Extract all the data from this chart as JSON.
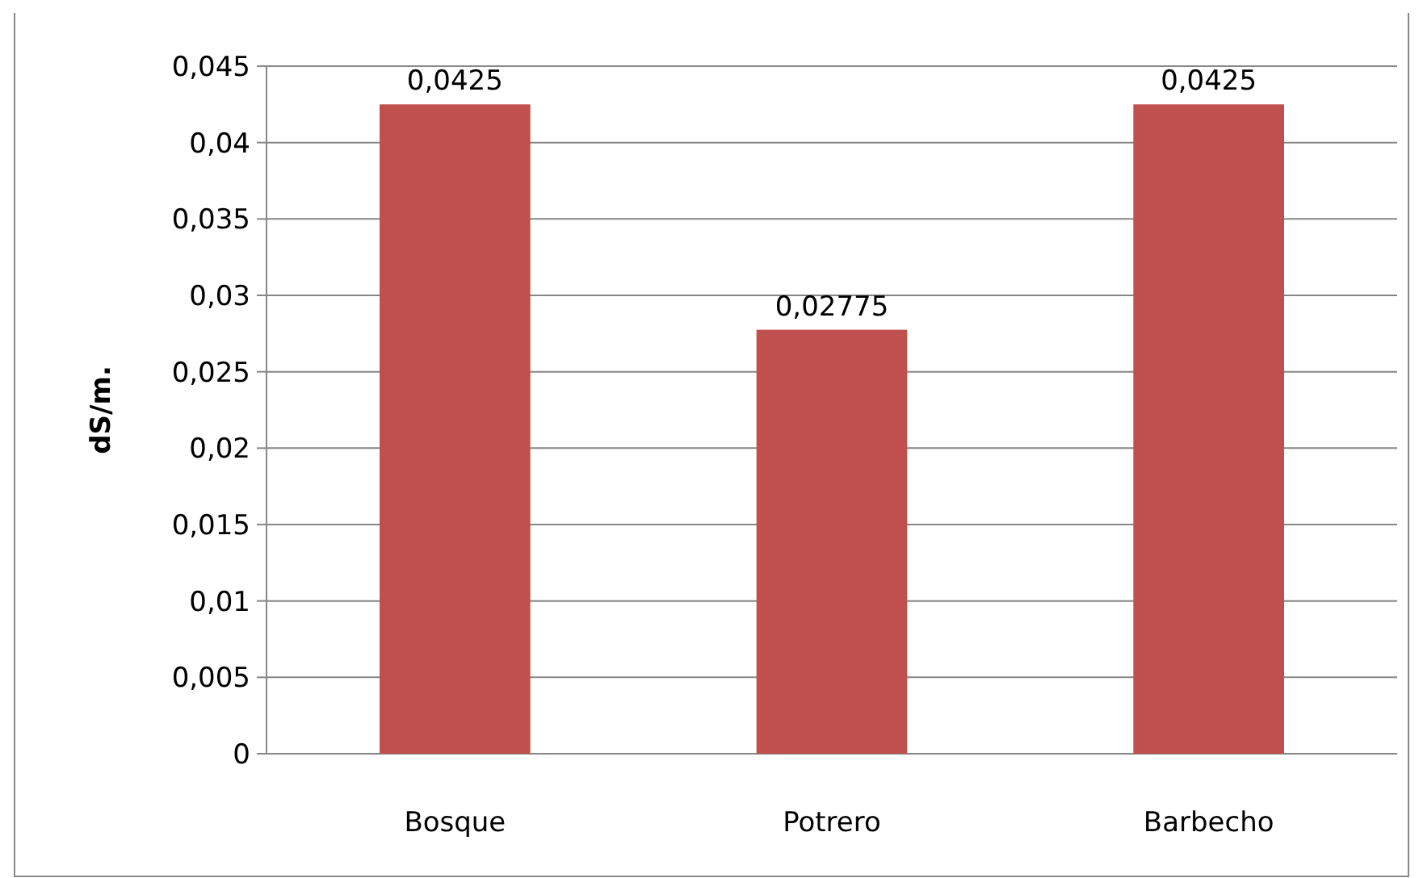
{
  "chart_data": {
    "type": "bar",
    "ylabel": "dS/m.",
    "categories": [
      "Bosque",
      "Potrero",
      "Barbecho"
    ],
    "values": [
      0.0425,
      0.02775,
      0.0425
    ],
    "color": "#c0504d",
    "value_labels": [
      "0,0425",
      "0,02775",
      "0,0425"
    ],
    "ylim": [
      0,
      0.045
    ],
    "yticks": [
      {
        "value": 0,
        "label": "0"
      },
      {
        "value": 0.005,
        "label": "0,005"
      },
      {
        "value": 0.01,
        "label": "0,01"
      },
      {
        "value": 0.015,
        "label": "0,015"
      },
      {
        "value": 0.02,
        "label": "0,02"
      },
      {
        "value": 0.025,
        "label": "0,025"
      },
      {
        "value": 0.03,
        "label": "0,03"
      },
      {
        "value": 0.035,
        "label": "0,035"
      },
      {
        "value": 0.04,
        "label": "0,04"
      },
      {
        "value": 0.045,
        "label": "0,045"
      }
    ],
    "grid": "y"
  }
}
